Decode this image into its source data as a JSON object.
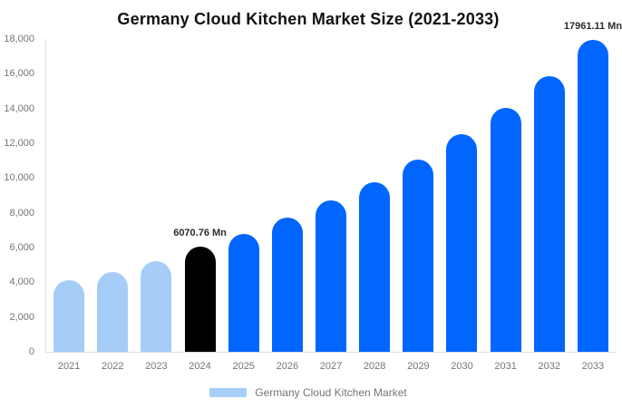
{
  "title": "Germany Cloud Kitchen Market Size (2021-2033)",
  "colors": {
    "historical_bar": "#a6cdf8",
    "highlight_bar": "#000000",
    "forecast_bar": "#0066ff",
    "axis_text": "#757575",
    "axis_line": "#dcdcdc",
    "annotation_text": "#2b2b2b"
  },
  "chart_data": {
    "type": "bar",
    "title": "Germany Cloud Kitchen Market Size (2021-2033)",
    "categories": [
      "2021",
      "2022",
      "2023",
      "2024",
      "2025",
      "2026",
      "2027",
      "2028",
      "2029",
      "2030",
      "2031",
      "2032",
      "2033"
    ],
    "values": [
      4100,
      4620,
      5200,
      6070.76,
      6800,
      7700,
      8700,
      9750,
      11050,
      12500,
      14050,
      15850,
      17961.11
    ],
    "unit": "Mn",
    "bar_colors": [
      "#a6cdf8",
      "#a6cdf8",
      "#a6cdf8",
      "#000000",
      "#0066ff",
      "#0066ff",
      "#0066ff",
      "#0066ff",
      "#0066ff",
      "#0066ff",
      "#0066ff",
      "#0066ff",
      "#0066ff"
    ],
    "value_labels": [
      {
        "index": 3,
        "text": "6070.76 Mn"
      },
      {
        "index": 12,
        "text": "17961.11 Mn"
      }
    ],
    "xlabel": "",
    "ylabel": "",
    "ylim": [
      0,
      18000
    ],
    "ytick_step": 2000,
    "ytick_labels": [
      "0",
      "2,000",
      "4,000",
      "6,000",
      "8,000",
      "10,000",
      "12,000",
      "14,000",
      "16,000",
      "18,000"
    ],
    "grid": false,
    "legend_position": "bottom",
    "legend": [
      {
        "label": "Germany Cloud Kitchen Market",
        "color": "#a6cdf8"
      }
    ]
  }
}
